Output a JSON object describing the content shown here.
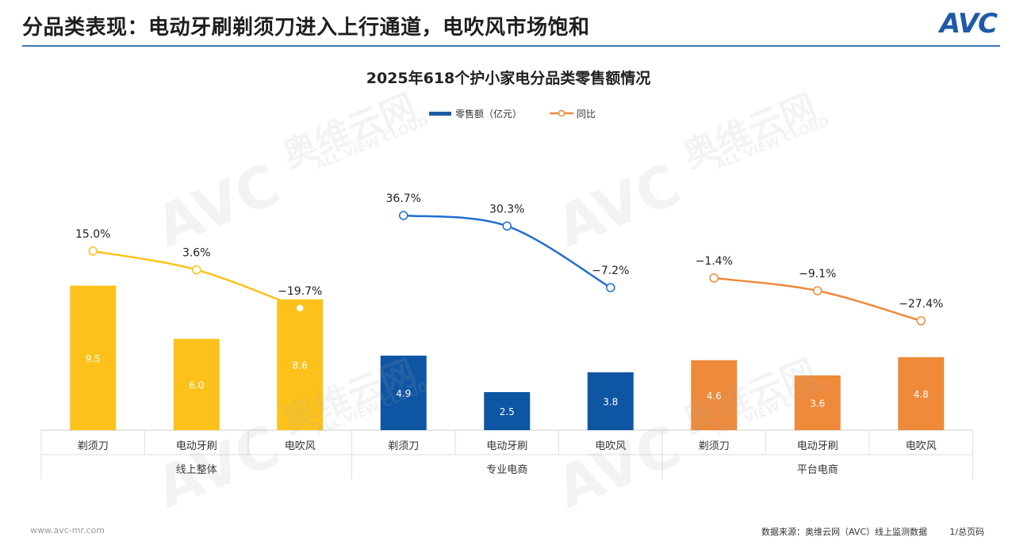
{
  "header": {
    "title": "分品类表现：电动牙刷剃须刀进入上行通道，电吹风市场饱和",
    "logo": "AVC",
    "accent_color": "#3f73b6"
  },
  "footer": {
    "url": "www.avc-mr.com",
    "source": "数据来源：奥维云网（AVC）线上监测数据",
    "page": "1/总页码"
  },
  "watermark": {
    "brand": "AVC",
    "cn": "奥维云网",
    "en": "ALL VIEW CLOUD"
  },
  "chart_data": {
    "type": "bar",
    "title": "2025年618个护小家电分品类零售额情况",
    "legend": [
      {
        "name": "零售额（亿元）",
        "kind": "bar",
        "color": "#1f5aa6"
      },
      {
        "name": "同比",
        "kind": "line",
        "color": "#ee8a3a"
      }
    ],
    "legend_position": "top-center",
    "grid": false,
    "groups": [
      {
        "name": "线上整体",
        "color": "#fcc21b",
        "line_color": "#fcc21b",
        "categories": [
          "剃须刀",
          "电动牙刷",
          "电吹风"
        ],
        "values": [
          9.5,
          6.0,
          8.6
        ],
        "value_labels": [
          "9.5",
          "6.0",
          "8.6"
        ],
        "yoy": [
          15.0,
          3.6,
          -19.7
        ],
        "yoy_labels": [
          "15.0%",
          "3.6%",
          "−19.7%"
        ]
      },
      {
        "name": "专业电商",
        "color": "#0e56a3",
        "line_color": "#1f6fd0",
        "categories": [
          "剃须刀",
          "电动牙刷",
          "电吹风"
        ],
        "values": [
          4.9,
          2.5,
          3.8
        ],
        "value_labels": [
          "4.9",
          "2.5",
          "3.8"
        ],
        "yoy": [
          36.7,
          30.3,
          -7.2
        ],
        "yoy_labels": [
          "36.7%",
          "30.3%",
          "−7.2%"
        ]
      },
      {
        "name": "平台电商",
        "color": "#ee8a3a",
        "line_color": "#ee8a3a",
        "categories": [
          "剃须刀",
          "电动牙刷",
          "电吹风"
        ],
        "values": [
          4.6,
          3.6,
          4.8
        ],
        "value_labels": [
          "4.6",
          "3.6",
          "4.8"
        ],
        "yoy": [
          -1.4,
          -9.1,
          -27.4
        ],
        "yoy_labels": [
          "−1.4%",
          "−9.1%",
          "−27.4%"
        ]
      }
    ]
  }
}
